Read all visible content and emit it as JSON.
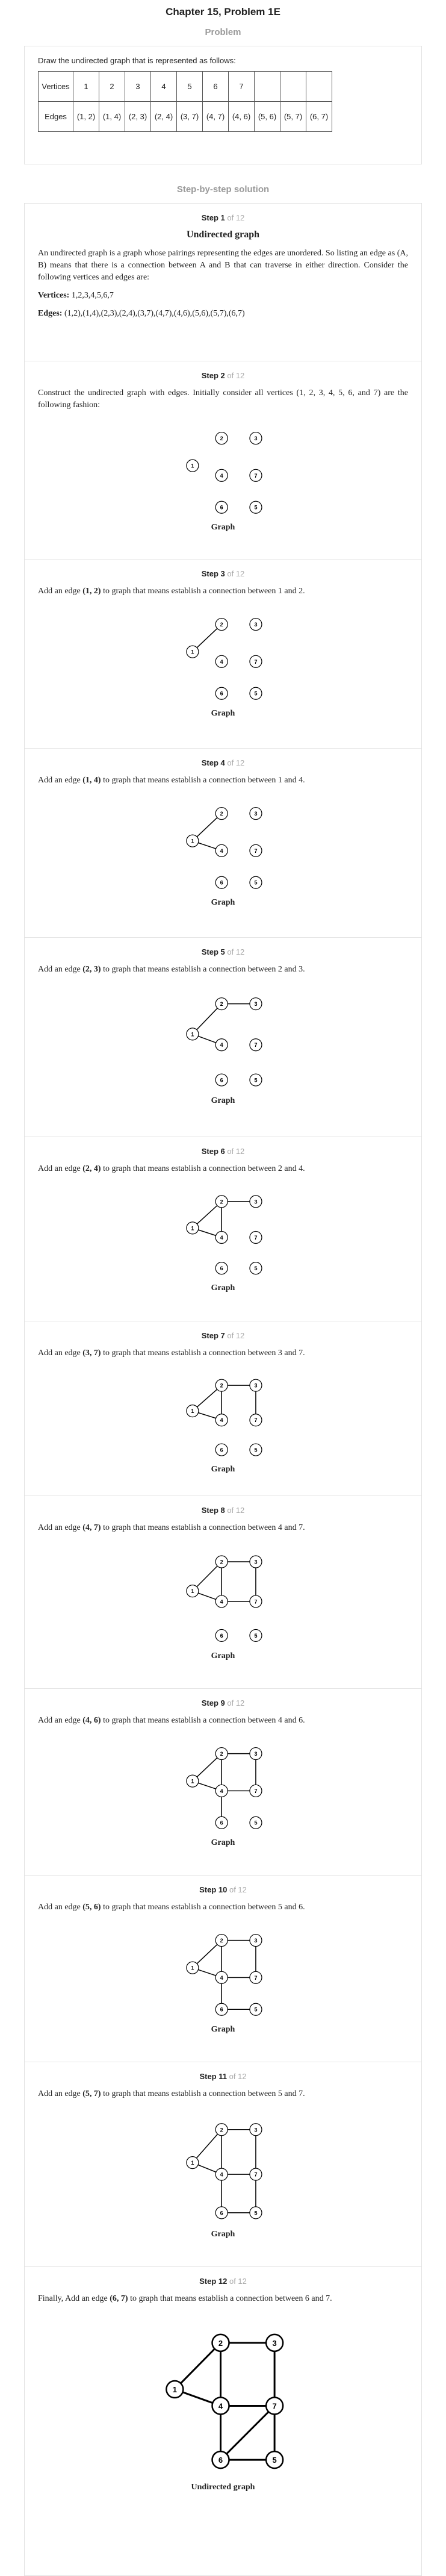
{
  "chapter_title": "Chapter 15, Problem 1E",
  "problem_label": "Problem",
  "problem_text": "Draw the undirected graph that is represented as follows:",
  "table": {
    "vertices_header": "Vertices",
    "vertices": [
      "1",
      "2",
      "3",
      "4",
      "5",
      "6",
      "7",
      "",
      "",
      ""
    ],
    "edges_header": "Edges",
    "edges": [
      "(1, 2)",
      "(1, 4)",
      "(2, 3)",
      "(2, 4)",
      "(3, 7)",
      "(4, 7)",
      "(4, 6)",
      "(5, 6)",
      "(5, 7)",
      "(6, 7)"
    ]
  },
  "solution_label": "Step-by-step solution",
  "vertex_labels": [
    "1",
    "2",
    "3",
    "4",
    "5",
    "6",
    "7"
  ],
  "steps": [
    {
      "num": "Step 1",
      "of": "of 12",
      "subtitle": "Undirected graph",
      "text": "An undirected graph is a graph whose pairings representing the edges are unordered. So listing an edge as (A, B) means that there is a connection between A and B that can traverse in either direction. Consider the following vertices and edges are:",
      "vertices_label": "Vertices:",
      "vertices_value": "1,2,3,4,5,6,7",
      "edges_label": "Edges:",
      "edges_value": "(1,2),(1,4),(2,3),(2,4),(3,7),(4,7),(4,6),(5,6),(5,7),(6,7)"
    },
    {
      "num": "Step 2",
      "of": "of 12",
      "text": "Construct the undirected graph with edges. Initially consider all vertices (1, 2, 3, 4, 5, 6, and 7) are the following fashion:",
      "caption": "Graph",
      "edges": []
    },
    {
      "num": "Step 3",
      "of": "of 12",
      "text_before": "Add an edge ",
      "edge": "(1, 2)",
      "text_after": " to graph that means establish a connection between 1 and 2.",
      "caption": "Graph",
      "edges": [
        [
          1,
          2
        ]
      ]
    },
    {
      "num": "Step 4",
      "of": "of 12",
      "text_before": "Add an edge ",
      "edge": "(1, 4)",
      "text_after": " to graph that means establish a connection between 1 and 4.",
      "caption": "Graph",
      "edges": [
        [
          1,
          2
        ],
        [
          1,
          4
        ]
      ]
    },
    {
      "num": "Step 5",
      "of": "of 12",
      "text_before": "Add an edge ",
      "edge": "(2, 3)",
      "text_after": " to graph that means establish a connection between 2 and 3.",
      "caption": "Graph",
      "edges": [
        [
          1,
          2
        ],
        [
          1,
          4
        ],
        [
          2,
          3
        ]
      ]
    },
    {
      "num": "Step 6",
      "of": "of 12",
      "text_before": "Add an edge ",
      "edge": "(2, 4)",
      "text_after": " to graph that means establish a connection between 2 and 4.",
      "caption": "Graph",
      "edges": [
        [
          1,
          2
        ],
        [
          1,
          4
        ],
        [
          2,
          3
        ],
        [
          2,
          4
        ]
      ]
    },
    {
      "num": "Step 7",
      "of": "of 12",
      "text_before": "Add an edge ",
      "edge": "(3, 7)",
      "text_after": " to graph that means establish a connection between 3 and 7.",
      "caption": "Graph",
      "edges": [
        [
          1,
          2
        ],
        [
          1,
          4
        ],
        [
          2,
          3
        ],
        [
          2,
          4
        ],
        [
          3,
          7
        ]
      ]
    },
    {
      "num": "Step 8",
      "of": "of 12",
      "text_before": "Add an edge ",
      "edge": "(4, 7)",
      "text_after": " to graph that means establish a connection between 4 and 7.",
      "caption": "Graph",
      "edges": [
        [
          1,
          2
        ],
        [
          1,
          4
        ],
        [
          2,
          3
        ],
        [
          2,
          4
        ],
        [
          3,
          7
        ],
        [
          4,
          7
        ]
      ]
    },
    {
      "num": "Step 9",
      "of": "of 12",
      "text_before": "Add an edge ",
      "edge": "(4, 6)",
      "text_after": " to graph that means establish a connection between 4 and 6.",
      "caption": "Graph",
      "edges": [
        [
          1,
          2
        ],
        [
          1,
          4
        ],
        [
          2,
          3
        ],
        [
          2,
          4
        ],
        [
          3,
          7
        ],
        [
          4,
          7
        ],
        [
          4,
          6
        ]
      ]
    },
    {
      "num": "Step 10",
      "of": "of 12",
      "text_before": "Add an edge ",
      "edge": "(5, 6)",
      "text_after": " to graph that means establish a connection between 5 and 6.",
      "caption": "Graph",
      "edges": [
        [
          1,
          2
        ],
        [
          1,
          4
        ],
        [
          2,
          3
        ],
        [
          2,
          4
        ],
        [
          3,
          7
        ],
        [
          4,
          7
        ],
        [
          4,
          6
        ],
        [
          5,
          6
        ]
      ]
    },
    {
      "num": "Step 11",
      "of": "of 12",
      "text_before": "Add an edge ",
      "edge": "(5, 7)",
      "text_after": " to graph that means establish a connection between 5 and 7.",
      "caption": "Graph",
      "edges": [
        [
          1,
          2
        ],
        [
          1,
          4
        ],
        [
          2,
          3
        ],
        [
          2,
          4
        ],
        [
          3,
          7
        ],
        [
          4,
          7
        ],
        [
          4,
          6
        ],
        [
          5,
          6
        ],
        [
          5,
          7
        ]
      ]
    },
    {
      "num": "Step 12",
      "of": "of 12",
      "text_before": "Finally, Add an edge ",
      "edge": "(6, 7)",
      "text_after": " to graph that means establish a connection between 6 and 7.",
      "caption": "Undirected graph",
      "edges": [
        [
          1,
          2
        ],
        [
          1,
          4
        ],
        [
          2,
          3
        ],
        [
          2,
          4
        ],
        [
          3,
          7
        ],
        [
          4,
          7
        ],
        [
          4,
          6
        ],
        [
          5,
          6
        ],
        [
          5,
          7
        ],
        [
          6,
          7
        ]
      ]
    }
  ]
}
